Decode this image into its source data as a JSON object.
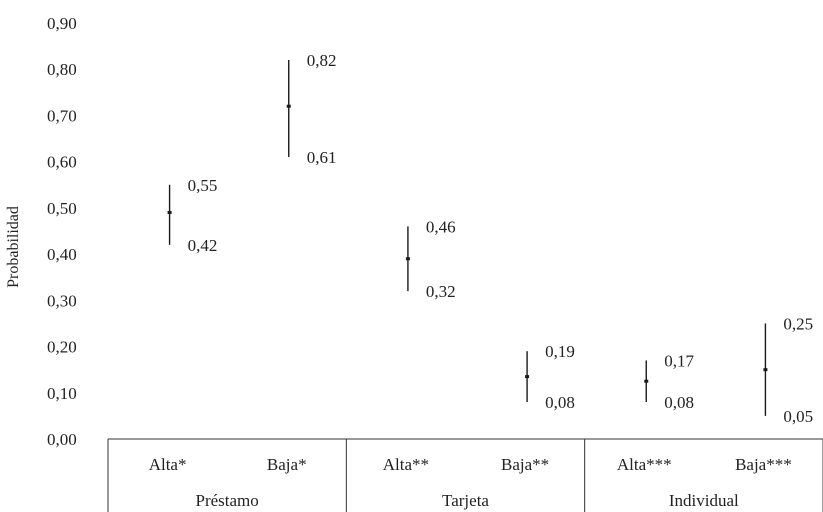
{
  "chart_data": {
    "type": "errorbar",
    "ylabel": "Probabilidad",
    "ylim": [
      0,
      0.9
    ],
    "yticks": [
      0,
      0.1,
      0.2,
      0.3,
      0.4,
      0.5,
      0.6,
      0.7,
      0.8,
      0.9
    ],
    "ytick_labels": [
      "0,00",
      "0,10",
      "0,20",
      "0,30",
      "0,40",
      "0,50",
      "0,60",
      "0,70",
      "0,80",
      "0,90"
    ],
    "grid": false,
    "groups": [
      "Préstamo",
      "Tarjeta",
      "Individual"
    ],
    "categories": [
      "Alta*",
      "Baja*",
      "Alta**",
      "Baja**",
      "Alta***",
      "Baja***"
    ],
    "points": [
      {
        "category": "Alta*",
        "group": "Préstamo",
        "lower": 0.42,
        "upper": 0.55,
        "mid": 0.49,
        "lower_label": "0,42",
        "upper_label": "0,55"
      },
      {
        "category": "Baja*",
        "group": "Préstamo",
        "lower": 0.61,
        "upper": 0.82,
        "mid": 0.72,
        "lower_label": "0,61",
        "upper_label": "0,82"
      },
      {
        "category": "Alta**",
        "group": "Tarjeta",
        "lower": 0.32,
        "upper": 0.46,
        "mid": 0.39,
        "lower_label": "0,32",
        "upper_label": "0,46"
      },
      {
        "category": "Baja**",
        "group": "Tarjeta",
        "lower": 0.08,
        "upper": 0.19,
        "mid": 0.135,
        "lower_label": "0,08",
        "upper_label": "0,19"
      },
      {
        "category": "Alta***",
        "group": "Individual",
        "lower": 0.08,
        "upper": 0.17,
        "mid": 0.125,
        "lower_label": "0,08",
        "upper_label": "0,17"
      },
      {
        "category": "Baja***",
        "group": "Individual",
        "lower": 0.05,
        "upper": 0.25,
        "mid": 0.15,
        "lower_label": "0,05",
        "upper_label": "0,25"
      }
    ],
    "colors": {
      "line": "#1a1a1a",
      "axis": "#333333",
      "text": "#222222"
    }
  }
}
